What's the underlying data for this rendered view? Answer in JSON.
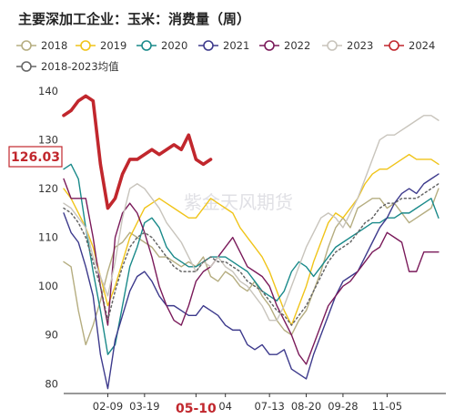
{
  "chart_data": {
    "type": "line",
    "title": "主要深加工企业：玉米：消费量（周）",
    "ylim": [
      78,
      140
    ],
    "yticks": [
      80,
      90,
      100,
      110,
      120,
      130,
      140
    ],
    "xlim": [
      0,
      52
    ],
    "xticks": [
      {
        "x": 6,
        "label": "02-09"
      },
      {
        "x": 11,
        "label": "03-19"
      },
      {
        "x": 18,
        "label": "05-10"
      },
      {
        "x": 22,
        "label": "04"
      },
      {
        "x": 28,
        "label": "07-13"
      },
      {
        "x": 33,
        "label": "08-20"
      },
      {
        "x": 38,
        "label": "09-28"
      },
      {
        "x": 44,
        "label": "11-05"
      }
    ],
    "highlight_tick": "05-10",
    "callout": "126.03",
    "watermark": "紫金天风期货",
    "series": [
      {
        "name": "2018",
        "color": "#b5ad80",
        "width": 1.4,
        "dash": "",
        "values": [
          105,
          104,
          95,
          88,
          92,
          97,
          103,
          108,
          109,
          111,
          110,
          109,
          108,
          106,
          106,
          105,
          104,
          105,
          104,
          106,
          102,
          101,
          103,
          102,
          100,
          99,
          101,
          98,
          96,
          93,
          91,
          90,
          93,
          95,
          99,
          103,
          108,
          112,
          114,
          112,
          116,
          117,
          118,
          118,
          116,
          117,
          115,
          113,
          114,
          115,
          116,
          120
        ]
      },
      {
        "name": "2019",
        "color": "#f0c419",
        "width": 1.4,
        "dash": "",
        "values": [
          120,
          118,
          115,
          112,
          108,
          102,
          96,
          100,
          105,
          110,
          113,
          116,
          117,
          118,
          117,
          116,
          115,
          114,
          114,
          116,
          118,
          117,
          116,
          115,
          112,
          110,
          108,
          106,
          103,
          99,
          95,
          92,
          96,
          100,
          105,
          109,
          113,
          115,
          114,
          116,
          118,
          121,
          123,
          124,
          124,
          125,
          126,
          127,
          126,
          126,
          126,
          125
        ]
      },
      {
        "name": "2020",
        "color": "#1a8a8a",
        "width": 1.4,
        "dash": "",
        "values": [
          124,
          125,
          122,
          112,
          103,
          95,
          86,
          88,
          96,
          104,
          108,
          113,
          114,
          112,
          108,
          106,
          105,
          104,
          104,
          105,
          106,
          106,
          106,
          105,
          104,
          103,
          101,
          99,
          98,
          97,
          99,
          103,
          105,
          104,
          102,
          104,
          106,
          108,
          109,
          110,
          111,
          112,
          113,
          113,
          114,
          114,
          115,
          115,
          116,
          117,
          118,
          114
        ]
      },
      {
        "name": "2021",
        "color": "#3d3a8c",
        "width": 1.4,
        "dash": "",
        "values": [
          115,
          111,
          109,
          104,
          98,
          86,
          79,
          89,
          94,
          99,
          102,
          103,
          101,
          98,
          96,
          96,
          95,
          94,
          94,
          96,
          95,
          94,
          92,
          91,
          91,
          88,
          87,
          88,
          86,
          86,
          87,
          83,
          82,
          81,
          86,
          90,
          94,
          98,
          101,
          102,
          103,
          106,
          109,
          112,
          114,
          117,
          119,
          120,
          119,
          121,
          122,
          123
        ]
      },
      {
        "name": "2022",
        "color": "#7a1a5a",
        "width": 1.4,
        "dash": "",
        "values": [
          122,
          118,
          118,
          118,
          110,
          100,
          92,
          110,
          115,
          117,
          115,
          111,
          106,
          100,
          96,
          93,
          92,
          96,
          101,
          103,
          104,
          106,
          108,
          110,
          107,
          104,
          103,
          102,
          100,
          96,
          93,
          90,
          86,
          84,
          88,
          92,
          96,
          98,
          100,
          101,
          103,
          105,
          107,
          108,
          111,
          110,
          109,
          103,
          103,
          107,
          107,
          107
        ]
      },
      {
        "name": "2023",
        "color": "#c8c4bc",
        "width": 1.4,
        "dash": "",
        "values": [
          117,
          116,
          114,
          112,
          106,
          102,
          98,
          105,
          114,
          120,
          121,
          120,
          118,
          116,
          113,
          111,
          109,
          106,
          103,
          105,
          104,
          106,
          104,
          103,
          101,
          100,
          98,
          96,
          93,
          93,
          96,
          100,
          104,
          108,
          111,
          114,
          115,
          114,
          112,
          115,
          118,
          122,
          126,
          130,
          131,
          131,
          132,
          133,
          134,
          135,
          135,
          134
        ]
      },
      {
        "name": "2024",
        "color": "#c1272d",
        "width": 3.6,
        "dash": "",
        "values": [
          135,
          136,
          138,
          139,
          138,
          125,
          116,
          118,
          123,
          126,
          126,
          127,
          128,
          127,
          128,
          129,
          128,
          131,
          126,
          125,
          126
        ]
      },
      {
        "name": "2018-2023均值",
        "color": "#666666",
        "width": 1.5,
        "dash": "2,3",
        "values": [
          116,
          115,
          113,
          110,
          105,
          100,
          93,
          99,
          104,
          108,
          110,
          111,
          110,
          108,
          106,
          104,
          103,
          103,
          103,
          105,
          106,
          105,
          105,
          104,
          103,
          101,
          100,
          99,
          97,
          95,
          94,
          92,
          94,
          96,
          99,
          102,
          105,
          107,
          108,
          109,
          111,
          113,
          114,
          116,
          117,
          117,
          118,
          118,
          118,
          119,
          120,
          121
        ]
      }
    ]
  }
}
